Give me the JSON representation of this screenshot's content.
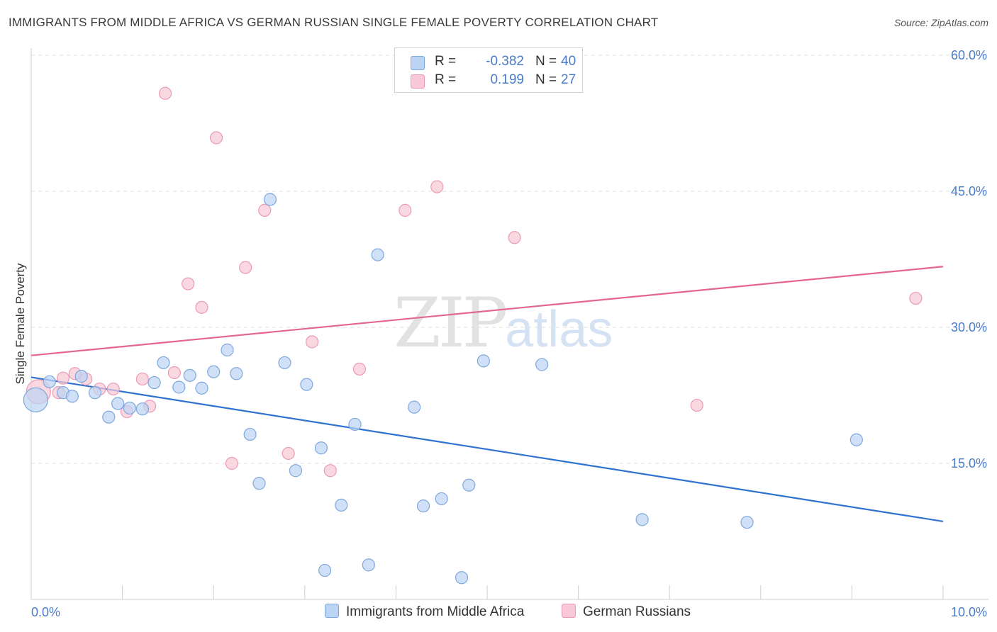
{
  "header": {
    "title": "IMMIGRANTS FROM MIDDLE AFRICA VS GERMAN RUSSIAN SINGLE FEMALE POVERTY CORRELATION CHART",
    "source": "Source: ZipAtlas.com"
  },
  "watermark": {
    "zip": "ZIP",
    "atlas": "atlas"
  },
  "legend_top": {
    "rows": [
      {
        "r_label": "R =",
        "r_value": "-0.382",
        "n_label": "N =",
        "n_value": "40"
      },
      {
        "r_label": "R =",
        "r_value": "0.199",
        "n_label": "N =",
        "n_value": "27"
      }
    ]
  },
  "legend_bottom": {
    "items": [
      {
        "label": "Immigrants from Middle Africa"
      },
      {
        "label": "German Russians"
      }
    ]
  },
  "colors": {
    "blue_fill": "#bcd4f3",
    "blue_stroke": "#7fa8dc",
    "blue_line": "#2f72cf",
    "pink_fill": "#f8c8d6",
    "pink_stroke": "#eb9bb4",
    "pink_line": "#e46690",
    "tick_text": "#4a7cc9",
    "grid": "#dddddd"
  },
  "chart_data": {
    "type": "scatter",
    "title": "IMMIGRANTS FROM MIDDLE AFRICA VS GERMAN RUSSIAN SINGLE FEMALE POVERTY CORRELATION CHART",
    "xlabel": "",
    "ylabel": "Single Female Poverty",
    "xlim": [
      0,
      10
    ],
    "ylim": [
      0,
      65
    ],
    "x_tick_labels": [
      "0.0%",
      "10.0%"
    ],
    "y_ticks": [
      15,
      30,
      45,
      60
    ],
    "y_tick_labels": [
      "15.0%",
      "30.0%",
      "45.0%",
      "60.0%"
    ],
    "grid": true,
    "legend_position": "bottom",
    "series": [
      {
        "name": "Immigrants from Middle Africa",
        "color": "#bcd4f3",
        "r": -0.382,
        "n": 40,
        "trend": {
          "x": [
            0,
            10
          ],
          "y": [
            24.5,
            8.6
          ]
        },
        "points": [
          {
            "x": 0.05,
            "y": 22.0,
            "big": true
          },
          {
            "x": 0.2,
            "y": 24.0
          },
          {
            "x": 0.35,
            "y": 22.8
          },
          {
            "x": 0.45,
            "y": 22.4
          },
          {
            "x": 0.55,
            "y": 24.6
          },
          {
            "x": 0.7,
            "y": 22.8
          },
          {
            "x": 0.85,
            "y": 20.1
          },
          {
            "x": 0.95,
            "y": 21.6
          },
          {
            "x": 1.08,
            "y": 21.1
          },
          {
            "x": 1.22,
            "y": 21.0
          },
          {
            "x": 1.35,
            "y": 23.9
          },
          {
            "x": 1.45,
            "y": 26.1
          },
          {
            "x": 1.62,
            "y": 23.4
          },
          {
            "x": 1.74,
            "y": 24.7
          },
          {
            "x": 1.87,
            "y": 23.3
          },
          {
            "x": 2.0,
            "y": 25.1
          },
          {
            "x": 2.15,
            "y": 27.5
          },
          {
            "x": 2.25,
            "y": 24.9
          },
          {
            "x": 2.4,
            "y": 18.2
          },
          {
            "x": 2.5,
            "y": 12.8
          },
          {
            "x": 2.62,
            "y": 44.1
          },
          {
            "x": 2.78,
            "y": 26.1
          },
          {
            "x": 2.9,
            "y": 14.2
          },
          {
            "x": 3.02,
            "y": 23.7
          },
          {
            "x": 3.18,
            "y": 16.7
          },
          {
            "x": 3.22,
            "y": 3.2
          },
          {
            "x": 3.4,
            "y": 10.4
          },
          {
            "x": 3.55,
            "y": 19.3
          },
          {
            "x": 3.7,
            "y": 3.8
          },
          {
            "x": 3.8,
            "y": 38.0
          },
          {
            "x": 4.2,
            "y": 21.2
          },
          {
            "x": 4.3,
            "y": 10.3
          },
          {
            "x": 4.5,
            "y": 11.1
          },
          {
            "x": 4.72,
            "y": 2.4
          },
          {
            "x": 4.8,
            "y": 12.6
          },
          {
            "x": 4.96,
            "y": 26.3
          },
          {
            "x": 5.6,
            "y": 25.9
          },
          {
            "x": 6.7,
            "y": 8.8
          },
          {
            "x": 7.85,
            "y": 8.5
          },
          {
            "x": 9.05,
            "y": 17.6
          }
        ]
      },
      {
        "name": "German Russians",
        "color": "#f8c8d6",
        "r": 0.199,
        "n": 27,
        "trend": {
          "x": [
            0,
            10
          ],
          "y": [
            26.9,
            36.7
          ]
        },
        "points": [
          {
            "x": 0.08,
            "y": 22.9,
            "big": true
          },
          {
            "x": 0.3,
            "y": 22.8
          },
          {
            "x": 0.35,
            "y": 24.4
          },
          {
            "x": 0.48,
            "y": 24.9
          },
          {
            "x": 0.6,
            "y": 24.3
          },
          {
            "x": 0.75,
            "y": 23.2
          },
          {
            "x": 0.9,
            "y": 23.2
          },
          {
            "x": 1.05,
            "y": 20.7
          },
          {
            "x": 1.22,
            "y": 24.3
          },
          {
            "x": 1.3,
            "y": 21.3
          },
          {
            "x": 1.47,
            "y": 55.8
          },
          {
            "x": 1.57,
            "y": 25.0
          },
          {
            "x": 1.72,
            "y": 34.8
          },
          {
            "x": 1.87,
            "y": 32.2
          },
          {
            "x": 2.03,
            "y": 50.9
          },
          {
            "x": 2.2,
            "y": 15.0
          },
          {
            "x": 2.35,
            "y": 36.6
          },
          {
            "x": 2.56,
            "y": 42.9
          },
          {
            "x": 2.82,
            "y": 16.1
          },
          {
            "x": 3.08,
            "y": 28.4
          },
          {
            "x": 3.28,
            "y": 14.2
          },
          {
            "x": 3.6,
            "y": 25.4
          },
          {
            "x": 4.1,
            "y": 42.9
          },
          {
            "x": 4.45,
            "y": 45.5
          },
          {
            "x": 5.3,
            "y": 39.9
          },
          {
            "x": 7.3,
            "y": 21.4
          },
          {
            "x": 9.7,
            "y": 33.2
          }
        ]
      }
    ]
  }
}
